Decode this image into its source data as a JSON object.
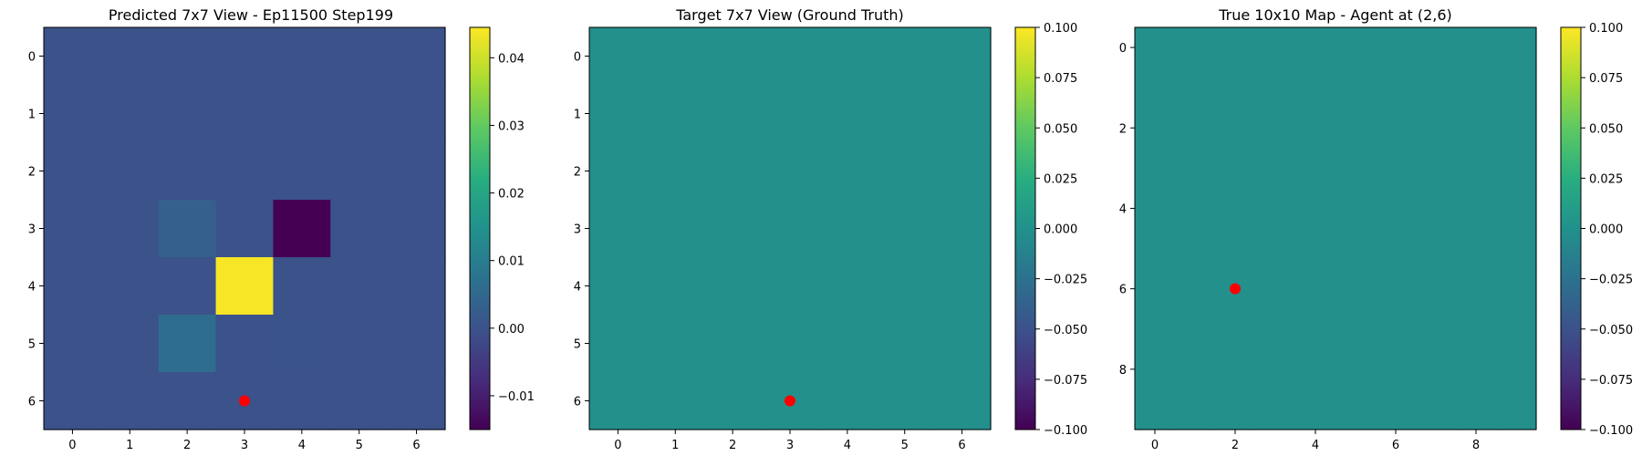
{
  "chart_data": [
    {
      "type": "heatmap",
      "title": "Predicted 7x7 View - Ep11500 Step199",
      "x": [
        0,
        1,
        2,
        3,
        4,
        5,
        6
      ],
      "y": [
        0,
        1,
        2,
        3,
        4,
        5,
        6
      ],
      "xticks": [
        "0",
        "1",
        "2",
        "3",
        "4",
        "5",
        "6"
      ],
      "yticks": [
        "0",
        "1",
        "2",
        "3",
        "4",
        "5",
        "6"
      ],
      "values": [
        [
          0.0,
          0.0,
          0.0,
          0.0,
          0.0,
          0.0,
          0.0
        ],
        [
          0.0,
          0.0,
          0.0,
          0.0,
          0.0,
          0.0,
          0.0
        ],
        [
          0.0,
          0.0,
          0.0,
          0.0,
          0.0,
          0.0,
          0.0
        ],
        [
          0.0,
          0.0,
          0.003,
          0.0,
          -0.015,
          0.0,
          0.0
        ],
        [
          0.0,
          0.0,
          0.0,
          0.044,
          0.0,
          0.0,
          0.0
        ],
        [
          0.0,
          0.0,
          0.006,
          0.0,
          0.0005,
          0.0,
          0.0
        ],
        [
          0.0,
          0.0,
          0.0,
          0.0,
          0.0,
          0.0,
          0.0
        ]
      ],
      "colorbar_range": [
        -0.015,
        0.0445
      ],
      "colorbar_ticks": [
        {
          "value": -0.01,
          "label": "−0.01"
        },
        {
          "value": 0.0,
          "label": "0.00"
        },
        {
          "value": 0.01,
          "label": "0.01"
        },
        {
          "value": 0.02,
          "label": "0.02"
        },
        {
          "value": 0.03,
          "label": "0.03"
        },
        {
          "value": 0.04,
          "label": "0.04"
        }
      ],
      "colormap": "viridis",
      "marker": {
        "x": 3,
        "y": 6,
        "color": "#ff0000"
      }
    },
    {
      "type": "heatmap",
      "title": "Target 7x7 View (Ground Truth)",
      "x": [
        0,
        1,
        2,
        3,
        4,
        5,
        6
      ],
      "y": [
        0,
        1,
        2,
        3,
        4,
        5,
        6
      ],
      "xticks": [
        "0",
        "1",
        "2",
        "3",
        "4",
        "5",
        "6"
      ],
      "yticks": [
        "0",
        "1",
        "2",
        "3",
        "4",
        "5",
        "6"
      ],
      "uniform_value": 0.0,
      "colorbar_range": [
        -0.1,
        0.1
      ],
      "colorbar_ticks": [
        {
          "value": 0.1,
          "label": "0.100"
        },
        {
          "value": 0.075,
          "label": "0.075"
        },
        {
          "value": 0.05,
          "label": "0.050"
        },
        {
          "value": 0.025,
          "label": "0.025"
        },
        {
          "value": 0.0,
          "label": "0.000"
        },
        {
          "value": -0.025,
          "label": "−0.025"
        },
        {
          "value": -0.05,
          "label": "−0.050"
        },
        {
          "value": -0.075,
          "label": "−0.075"
        },
        {
          "value": -0.1,
          "label": "−0.100"
        }
      ],
      "colormap": "viridis",
      "marker": {
        "x": 3,
        "y": 6,
        "color": "#ff0000"
      }
    },
    {
      "type": "heatmap",
      "title": "True 10x10 Map - Agent at (2,6)",
      "x": [
        0,
        1,
        2,
        3,
        4,
        5,
        6,
        7,
        8,
        9
      ],
      "y": [
        0,
        1,
        2,
        3,
        4,
        5,
        6,
        7,
        8,
        9
      ],
      "xticks": [
        "0",
        "2",
        "4",
        "6",
        "8"
      ],
      "yticks": [
        "0",
        "2",
        "4",
        "6",
        "8"
      ],
      "uniform_value": 0.0,
      "colorbar_range": [
        -0.1,
        0.1
      ],
      "colorbar_ticks": [
        {
          "value": 0.1,
          "label": "0.100"
        },
        {
          "value": 0.075,
          "label": "0.075"
        },
        {
          "value": 0.05,
          "label": "0.050"
        },
        {
          "value": 0.025,
          "label": "0.025"
        },
        {
          "value": 0.0,
          "label": "0.000"
        },
        {
          "value": -0.025,
          "label": "−0.025"
        },
        {
          "value": -0.05,
          "label": "−0.050"
        },
        {
          "value": -0.075,
          "label": "−0.075"
        },
        {
          "value": -0.1,
          "label": "−0.100"
        }
      ],
      "colormap": "viridis",
      "marker": {
        "x": 2,
        "y": 6,
        "color": "#ff0000"
      }
    }
  ]
}
